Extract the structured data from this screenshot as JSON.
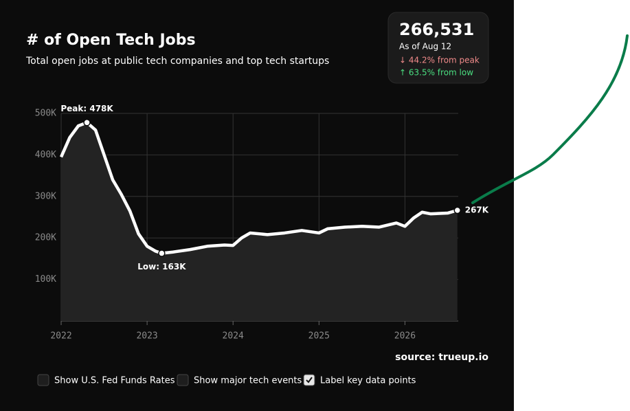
{
  "chart_data": {
    "type": "line",
    "title": "# of Open Tech Jobs",
    "subtitle": "Total open jobs at public tech companies and top tech startups",
    "x": [
      2022.0,
      2022.1,
      2022.2,
      2022.3,
      2022.4,
      2022.5,
      2022.6,
      2022.7,
      2022.8,
      2022.9,
      2023.0,
      2023.1,
      2023.17,
      2023.3,
      2023.5,
      2023.7,
      2023.9,
      2024.0,
      2024.1,
      2024.2,
      2024.4,
      2024.6,
      2024.8,
      2025.0,
      2025.1,
      2025.3,
      2025.5,
      2025.7,
      2025.9,
      2026.0,
      2026.1,
      2026.2,
      2026.3,
      2026.5,
      2026.61
    ],
    "values": [
      395000,
      442000,
      470000,
      478000,
      460000,
      400000,
      340000,
      305000,
      265000,
      210000,
      180000,
      168000,
      163000,
      166000,
      172000,
      180000,
      183000,
      182000,
      200000,
      212000,
      208000,
      212000,
      218000,
      212000,
      222000,
      226000,
      228000,
      226000,
      236000,
      228000,
      248000,
      262000,
      258000,
      260000,
      266531
    ],
    "color": "#ffffff",
    "xlim": [
      2022,
      2026.62
    ],
    "xticks": [
      2022,
      2023,
      2024,
      2025,
      2026
    ],
    "ylim": [
      0,
      500000
    ],
    "yticks": [
      {
        "value": 100000,
        "label": "100K"
      },
      {
        "value": 200000,
        "label": "200K"
      },
      {
        "value": 300000,
        "label": "300K"
      },
      {
        "value": 400000,
        "label": "400K"
      },
      {
        "value": 500000,
        "label": "500K"
      }
    ],
    "grid": true,
    "peak_label": "Peak: 478K",
    "low_label": "Low: 163K",
    "last_label": "267K",
    "source": "source: trueup.io"
  },
  "stat_card": {
    "value": "266,531",
    "date": "As of Aug 12",
    "from_peak": "↓ 44.2% from peak",
    "from_low": "↑ 63.5% from low"
  },
  "controls": [
    {
      "label": "Show U.S. Fed Funds Rates",
      "checked": false
    },
    {
      "label": "Show major tech events",
      "checked": false
    },
    {
      "label": "Label key data points",
      "checked": true
    }
  ]
}
